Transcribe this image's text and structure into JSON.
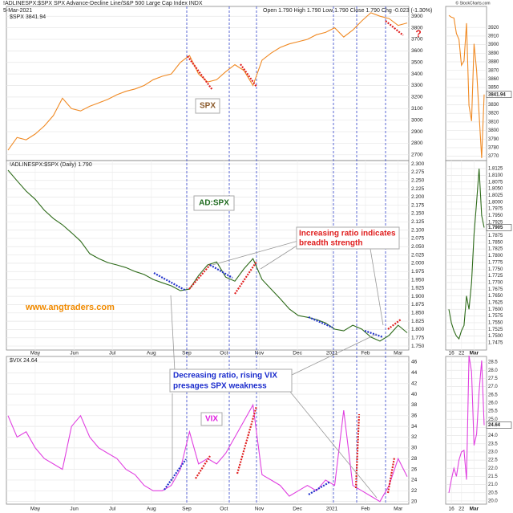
{
  "header": {
    "symbol": "!ADLINESPX:$SPX SPX Advance-Decline Line/S&P 500 Large Cap Index INDX",
    "date": "5-Mar-2021",
    "quote": "Open 1.790 High 1.790 Low 1.790 Close 1.790 Chg -0.023 (-1.30%)",
    "credit": "© StockCharts.com"
  },
  "chart_data": [
    {
      "type": "line",
      "legend": "$SPX 3841.94",
      "color": "#f08a24",
      "grid": true,
      "annotations": [
        "SPX",
        "?"
      ],
      "values": [
        2740,
        2850,
        2830,
        2880,
        2950,
        3040,
        3190,
        3100,
        3080,
        3120,
        3150,
        3180,
        3220,
        3250,
        3270,
        3300,
        3350,
        3380,
        3400,
        3500,
        3560,
        3400,
        3330,
        3350,
        3420,
        3480,
        3430,
        3300,
        3520,
        3580,
        3630,
        3660,
        3680,
        3700,
        3740,
        3760,
        3800,
        3720,
        3780,
        3860,
        3930,
        3900,
        3880,
        3820,
        3841.94
      ],
      "ylim": [
        2650,
        3985
      ],
      "yticks": [
        3900,
        3800,
        3700,
        3600,
        3500,
        3400,
        3300,
        3200,
        3100,
        3000,
        2900,
        2800,
        2700
      ]
    },
    {
      "type": "line",
      "legend": "!ADLINESPX:$SPX (Daily) 1.790",
      "color": "#2e6b1a",
      "grid": true,
      "annotations": [
        "AD:SPX",
        "Increasing ratio indicates",
        "breadth strength",
        "www.angtraders.com"
      ],
      "values": [
        2.281,
        2.249,
        2.218,
        2.193,
        2.16,
        2.135,
        2.116,
        2.092,
        2.067,
        2.029,
        2.014,
        2.002,
        1.995,
        1.987,
        1.975,
        1.966,
        1.951,
        1.941,
        1.932,
        1.917,
        1.922,
        1.963,
        1.995,
        2.004,
        1.958,
        1.946,
        1.983,
        2.014,
        1.951,
        1.922,
        1.893,
        1.862,
        1.842,
        1.837,
        1.83,
        1.82,
        1.801,
        1.796,
        1.813,
        1.801,
        1.777,
        1.765,
        1.782,
        1.813,
        1.79
      ],
      "ylim": [
        1.738,
        2.31
      ],
      "yticks": [
        {
          "value": 2.3,
          "label": "2.300"
        },
        2.275,
        {
          "value": 2.25,
          "label": "2.250"
        },
        2.225,
        {
          "value": 2.2,
          "label": "2.200"
        },
        2.175,
        {
          "value": 2.15,
          "label": "2.150"
        },
        2.125,
        {
          "value": 2.1,
          "label": "2.100"
        },
        2.075,
        {
          "value": 2.05,
          "label": "2.050"
        },
        2.025,
        {
          "value": 2,
          "label": "2.000"
        },
        1.975,
        {
          "value": 1.95,
          "label": "1.950"
        },
        1.925,
        {
          "value": 1.9,
          "label": "1.900"
        },
        1.875,
        {
          "value": 1.85,
          "label": "1.850"
        },
        1.825,
        {
          "value": 1.8,
          "label": "1.800"
        },
        1.775,
        {
          "value": 1.75,
          "label": "1.750"
        }
      ],
      "xticks": [
        {
          "value": 3,
          "label": "May"
        },
        {
          "value": 7.3,
          "label": "Jun"
        },
        {
          "value": 11.5,
          "label": "Jul"
        },
        {
          "value": 15.8,
          "label": "Aug"
        },
        {
          "value": 19.7,
          "label": "Sep"
        },
        {
          "value": 23.8,
          "label": "Oct"
        },
        {
          "value": 27.7,
          "label": "Nov"
        },
        {
          "value": 31.9,
          "label": "Dec"
        },
        {
          "value": 35.7,
          "label": "2021"
        },
        {
          "value": 39.4,
          "label": "Feb"
        },
        {
          "value": 43,
          "label": "Mar"
        }
      ]
    },
    {
      "type": "line",
      "legend": "$VIX 24.64",
      "color": "#e040e0",
      "grid": true,
      "annotations": [
        "Decreasing ratio, rising VIX",
        "presages SPX weakness",
        "VIX"
      ],
      "values": [
        36,
        32,
        33,
        30,
        28,
        27,
        26,
        34,
        36,
        32,
        30,
        29,
        28,
        26,
        25,
        23,
        22,
        22,
        23,
        26,
        33,
        27,
        28,
        27,
        29,
        32,
        35,
        38,
        25,
        24,
        23,
        21,
        22,
        23,
        22,
        24,
        23,
        37,
        23,
        22,
        21,
        20,
        23,
        28,
        24.64
      ],
      "ylim": [
        19.5,
        47.05
      ],
      "yticks": [
        46,
        44,
        42,
        40,
        38,
        36,
        34,
        32,
        30,
        28,
        26,
        24,
        22,
        20
      ],
      "xticks": [
        {
          "value": 3,
          "label": "May"
        },
        {
          "value": 7.3,
          "label": "Jun"
        },
        {
          "value": 11.5,
          "label": "Jul"
        },
        {
          "value": 15.8,
          "label": "Aug"
        },
        {
          "value": 19.7,
          "label": "Sep"
        },
        {
          "value": 23.8,
          "label": "Oct"
        },
        {
          "value": 27.7,
          "label": "Nov"
        },
        {
          "value": 31.9,
          "label": "Dec"
        },
        {
          "value": 35.7,
          "label": "2021"
        },
        {
          "value": 39.4,
          "label": "Feb"
        },
        {
          "value": 43,
          "label": "Mar"
        }
      ]
    },
    {
      "type": "line",
      "color": "#f08a24",
      "grid": true,
      "values": [
        3934,
        3932,
        3931,
        3913,
        3906,
        3876,
        3881,
        3925,
        3829,
        3811,
        3901,
        3870,
        3819,
        3768,
        3841.94
      ],
      "ylim": [
        3765,
        3944.5
      ],
      "yticks": [
        3920,
        3910,
        3900,
        3890,
        3880,
        3870,
        3860,
        3850,
        3840,
        3830,
        3820,
        3810,
        3800,
        3790,
        3780,
        3770
      ]
    },
    {
      "type": "line",
      "color": "#2e6b1a",
      "grid": true,
      "values": [
        1.76,
        1.755,
        1.752,
        1.75,
        1.749,
        1.752,
        1.754,
        1.765,
        1.76,
        1.77,
        1.788,
        1.8,
        1.8125,
        1.795,
        1.7905
      ],
      "ylim": [
        1.7448,
        1.8155
      ],
      "yticks": [
        1.8125,
        {
          "value": 1.81,
          "label": "1.8100"
        },
        1.8075,
        {
          "value": 1.805,
          "label": "1.8050"
        },
        1.8025,
        {
          "value": 1.8,
          "label": "1.8000"
        },
        1.7975,
        {
          "value": 1.795,
          "label": "1.7950"
        },
        1.7925,
        {
          "value": 1.79,
          "label": "1.7900"
        },
        1.7875,
        {
          "value": 1.785,
          "label": "1.7850"
        },
        1.7825,
        {
          "value": 1.78,
          "label": "1.7800"
        },
        1.7775,
        {
          "value": 1.775,
          "label": "1.7750"
        },
        1.7725,
        {
          "value": 1.77,
          "label": "1.7700"
        },
        1.7675,
        {
          "value": 1.765,
          "label": "1.7650"
        },
        1.7625,
        {
          "value": 1.76,
          "label": "1.7600"
        },
        1.7575,
        {
          "value": 1.755,
          "label": "1.7550"
        },
        1.7525,
        {
          "value": 1.75,
          "label": "1.7500"
        },
        1.7475
      ],
      "xticks": [
        {
          "value": 1,
          "label": "16"
        },
        {
          "value": 5,
          "label": "22"
        },
        {
          "value": 10,
          "label": "Mar"
        }
      ]
    },
    {
      "type": "line",
      "color": "#e040e0",
      "grid": true,
      "values": [
        20.5,
        21.3,
        22,
        21.5,
        22.5,
        23,
        23.1,
        21.3,
        28.9,
        27.9,
        23.4,
        24.1,
        26.7,
        28.6,
        24.64
      ],
      "ylim": [
        19.8,
        28.85
      ],
      "yticks": [
        28.5,
        {
          "value": 28,
          "label": "28.0"
        },
        27.5,
        {
          "value": 27,
          "label": "27.0"
        },
        26.5,
        {
          "value": 26,
          "label": "26.0"
        },
        25.5,
        {
          "value": 25,
          "label": "25.0"
        },
        24.5,
        {
          "value": 24,
          "label": "24.0"
        },
        23.5,
        {
          "value": 23,
          "label": "23.0"
        },
        22.5,
        {
          "value": 22,
          "label": "22.0"
        },
        21.5,
        {
          "value": 21,
          "label": "21.0"
        },
        20.5,
        {
          "value": 20,
          "label": "20.0"
        }
      ],
      "xticks": [
        {
          "value": 1,
          "label": "16"
        },
        {
          "value": 5,
          "label": "22"
        },
        {
          "value": 10,
          "label": "Mar"
        }
      ]
    }
  ]
}
